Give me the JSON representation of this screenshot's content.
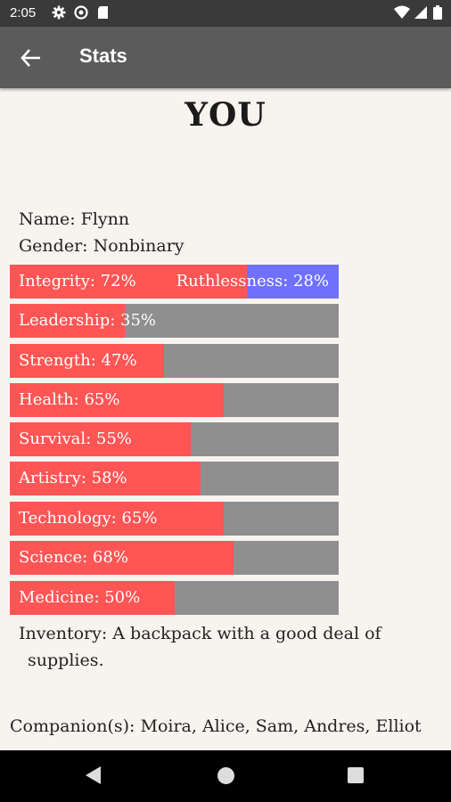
{
  "status_bar": {
    "time": "2:05",
    "icons": [
      "gear-icon",
      "sync-icon",
      "sd-card-icon",
      "wifi-icon",
      "signal-icon",
      "battery-icon"
    ]
  },
  "app_bar": {
    "title": "Stats",
    "back_icon": "arrow-left-icon"
  },
  "heading": "YOU",
  "profile": {
    "name": "Name: Flynn",
    "gender": "Gender: Nonbinary"
  },
  "integrity_bar": {
    "left_label": "Integrity: 72%",
    "right_label": "Ruthlessness: 28%",
    "left_value": 72,
    "right_value": 28,
    "left_color": "#ff5555",
    "right_color": "#7070ff"
  },
  "stats": [
    {
      "label": "Leadership: 35%",
      "value": 35
    },
    {
      "label": "Strength: 47%",
      "value": 47
    },
    {
      "label": "Health: 65%",
      "value": 65
    },
    {
      "label": "Survival: 55%",
      "value": 55
    },
    {
      "label": "Artistry: 58%",
      "value": 58
    },
    {
      "label": "Technology: 65%",
      "value": 65
    },
    {
      "label": "Science: 68%",
      "value": 68
    },
    {
      "label": "Medicine: 50%",
      "value": 50
    }
  ],
  "colors": {
    "fill": "#ff5555",
    "track": "#8f8f8f",
    "app_bar": "#5b5b5b"
  },
  "inventory": "Inventory: A backpack with a good deal of supplies.",
  "companions": "Companion(s): Moira, Alice, Sam, Andres, Elliot",
  "nav_bar": {
    "icons": [
      "back-triangle-icon",
      "home-circle-icon",
      "recents-square-icon"
    ]
  }
}
